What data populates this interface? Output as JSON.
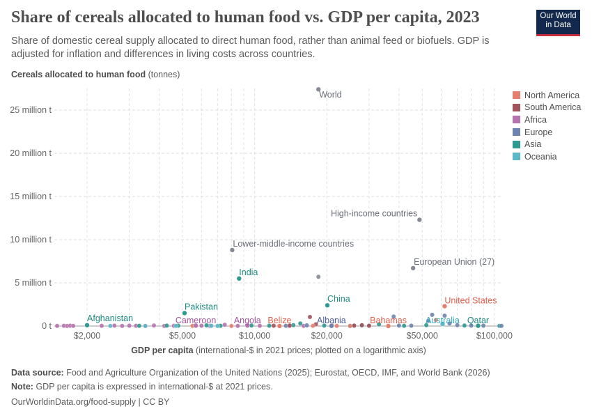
{
  "header": {
    "title": "Share of cereals allocated to human food vs. GDP per capita, 2023",
    "subtitle": "Share of domestic cereal supply allocated to direct human food, rather than animal feed or biofuels. GDP is adjusted for inflation and differences in living costs across countries.",
    "logo": "Our World in Data"
  },
  "footer": {
    "source_label": "Data source:",
    "source": "Food and Agriculture Organization of the United Nations (2025); Eurostat, OECD, IMF, and World Bank (2026)",
    "note_label": "Note:",
    "note": "GDP per capita is expressed in international-$ at 2021 prices.",
    "url": "OurWorldinData.org/food-supply | CC BY"
  },
  "chart_data": {
    "type": "scatter",
    "title": "Share of cereals allocated to human food vs. GDP per capita, 2023",
    "ylabel_bold": "Cereals allocated to human food",
    "ylabel_rest": " (tonnes)",
    "xlabel_bold": "GDP per capita",
    "xlabel_rest": " (international-$ in 2021 prices; plotted on a logarithmic axis)",
    "xscale": "log",
    "xlim": [
      1460,
      107000
    ],
    "ylim": [
      0,
      27500000
    ],
    "xticks": [
      2000,
      5000,
      10000,
      20000,
      50000,
      100000
    ],
    "xtick_labels": [
      "$2,000",
      "$5,000",
      "$10,000",
      "$20,000",
      "$50,000",
      "$100,000"
    ],
    "yticks": [
      0,
      5000000,
      10000000,
      15000000,
      20000000,
      25000000
    ],
    "ytick_labels": [
      "0 t",
      "5 million t",
      "10 million t",
      "15 million t",
      "20 million t",
      "25 million t"
    ],
    "grid": true,
    "legend_position": "right",
    "legend": [
      {
        "name": "North America",
        "color": "#e5806e"
      },
      {
        "name": "South America",
        "color": "#a2545c"
      },
      {
        "name": "Africa",
        "color": "#b674ae"
      },
      {
        "name": "Europe",
        "color": "#6e83ad"
      },
      {
        "name": "Asia",
        "color": "#2f9a8f"
      },
      {
        "name": "Oceania",
        "color": "#5cb8c6"
      }
    ],
    "aggregate_color": "#858a94",
    "labeled_points": [
      {
        "label": "World",
        "gdp": 18450,
        "value": 27400000,
        "region": "aggregate"
      },
      {
        "label": "High-income countries",
        "gdp": 48700,
        "value": 12300000,
        "region": "aggregate"
      },
      {
        "label": "Lower-middle-income countries",
        "gdp": 8060,
        "value": 8800000,
        "region": "aggregate"
      },
      {
        "label": "European Union (27)",
        "gdp": 45800,
        "value": 6700000,
        "region": "aggregate"
      },
      {
        "label": "India",
        "gdp": 8610,
        "value": 5500000,
        "region": "Asia"
      },
      {
        "label": "China",
        "gdp": 20100,
        "value": 2400000,
        "region": "Asia"
      },
      {
        "label": "Pakistan",
        "gdp": 5100,
        "value": 1500000,
        "region": "Asia"
      },
      {
        "label": "United States",
        "gdp": 62000,
        "value": 2300000,
        "region": "North America"
      },
      {
        "label": "Afghanistan",
        "gdp": 2000,
        "value": 100000,
        "region": "Asia"
      },
      {
        "label": "Cameroon",
        "gdp": 5680,
        "value": 50000,
        "region": "Africa"
      },
      {
        "label": "Angola",
        "gdp": 9330,
        "value": 60000,
        "region": "Africa"
      },
      {
        "label": "Belize",
        "gdp": 12700,
        "value": 5000,
        "region": "North America"
      },
      {
        "label": "Albania",
        "gdp": 20900,
        "value": 20000,
        "region": "Europe"
      },
      {
        "label": "Bahamas",
        "gdp": 36100,
        "value": 3000,
        "region": "North America"
      },
      {
        "label": "Australia",
        "gdp": 60800,
        "value": 250000,
        "region": "Oceania"
      },
      {
        "label": "Qatar",
        "gdp": 85500,
        "value": 30000,
        "region": "Asia"
      }
    ],
    "points": [
      [
        18450,
        5700000,
        "aggregate"
      ],
      [
        17000,
        1050000,
        "South America"
      ],
      [
        1500,
        20000,
        "Africa"
      ],
      [
        1600,
        30000,
        "Africa"
      ],
      [
        1650,
        10000,
        "Africa"
      ],
      [
        1700,
        40000,
        "Africa"
      ],
      [
        1750,
        20000,
        "Africa"
      ],
      [
        2300,
        30000,
        "Africa"
      ],
      [
        2600,
        50000,
        "Africa"
      ],
      [
        2800,
        20000,
        "Africa"
      ],
      [
        3000,
        40000,
        "Africa"
      ],
      [
        3200,
        30000,
        "Africa"
      ],
      [
        3500,
        20000,
        "Africa"
      ],
      [
        3800,
        60000,
        "Africa"
      ],
      [
        4200,
        10000,
        "Africa"
      ],
      [
        4600,
        30000,
        "Africa"
      ],
      [
        6000,
        40000,
        "Africa"
      ],
      [
        6500,
        20000,
        "Africa"
      ],
      [
        7500,
        150000,
        "Africa"
      ],
      [
        8500,
        20000,
        "Africa"
      ],
      [
        10500,
        30000,
        "Africa"
      ],
      [
        14000,
        10000,
        "Africa"
      ],
      [
        16000,
        20000,
        "Africa"
      ],
      [
        3300,
        30000,
        "Asia"
      ],
      [
        4300,
        50000,
        "Asia"
      ],
      [
        4800,
        40000,
        "Asia"
      ],
      [
        6300,
        80000,
        "Asia"
      ],
      [
        7200,
        30000,
        "Asia"
      ],
      [
        9700,
        60000,
        "Asia"
      ],
      [
        11500,
        40000,
        "Asia"
      ],
      [
        14500,
        100000,
        "Asia"
      ],
      [
        15500,
        300000,
        "Asia"
      ],
      [
        19500,
        50000,
        "Asia"
      ],
      [
        25000,
        40000,
        "Asia"
      ],
      [
        28000,
        60000,
        "Asia"
      ],
      [
        33000,
        200000,
        "Asia"
      ],
      [
        42000,
        30000,
        "Asia"
      ],
      [
        52000,
        100000,
        "Asia"
      ],
      [
        75000,
        60000,
        "Asia"
      ],
      [
        105000,
        20000,
        "Asia"
      ],
      [
        2500,
        20000,
        "Oceania"
      ],
      [
        3500,
        10000,
        "Oceania"
      ],
      [
        4700,
        20000,
        "Oceania"
      ],
      [
        6600,
        30000,
        "Oceania"
      ],
      [
        7000,
        10000,
        "Oceania"
      ],
      [
        13500,
        30000,
        "Europe"
      ],
      [
        16500,
        80000,
        "Europe"
      ],
      [
        26000,
        40000,
        "Europe"
      ],
      [
        30000,
        60000,
        "Europe"
      ],
      [
        38000,
        1100000,
        "Europe"
      ],
      [
        40000,
        50000,
        "Europe"
      ],
      [
        45000,
        40000,
        "Europe"
      ],
      [
        53000,
        600000,
        "Europe"
      ],
      [
        55000,
        1300000,
        "Europe"
      ],
      [
        62000,
        1200000,
        "Europe"
      ],
      [
        65000,
        300000,
        "Europe"
      ],
      [
        70000,
        100000,
        "Europe"
      ],
      [
        80000,
        50000,
        "Europe"
      ],
      [
        90000,
        40000,
        "Europe"
      ],
      [
        107000,
        20000,
        "Europe"
      ],
      [
        12000,
        40000,
        "South America"
      ],
      [
        14000,
        60000,
        "South America"
      ],
      [
        18000,
        200000,
        "South America"
      ],
      [
        21000,
        80000,
        "South America"
      ],
      [
        26000,
        50000,
        "South America"
      ],
      [
        28000,
        100000,
        "South America"
      ],
      [
        30000,
        30000,
        "South America"
      ],
      [
        5500,
        20000,
        "North America"
      ],
      [
        8000,
        10000,
        "North America"
      ],
      [
        17500,
        30000,
        "North America"
      ],
      [
        22000,
        20000,
        "North America"
      ],
      [
        25000,
        10000,
        "North America"
      ],
      [
        57000,
        700000,
        "North America"
      ]
    ]
  }
}
